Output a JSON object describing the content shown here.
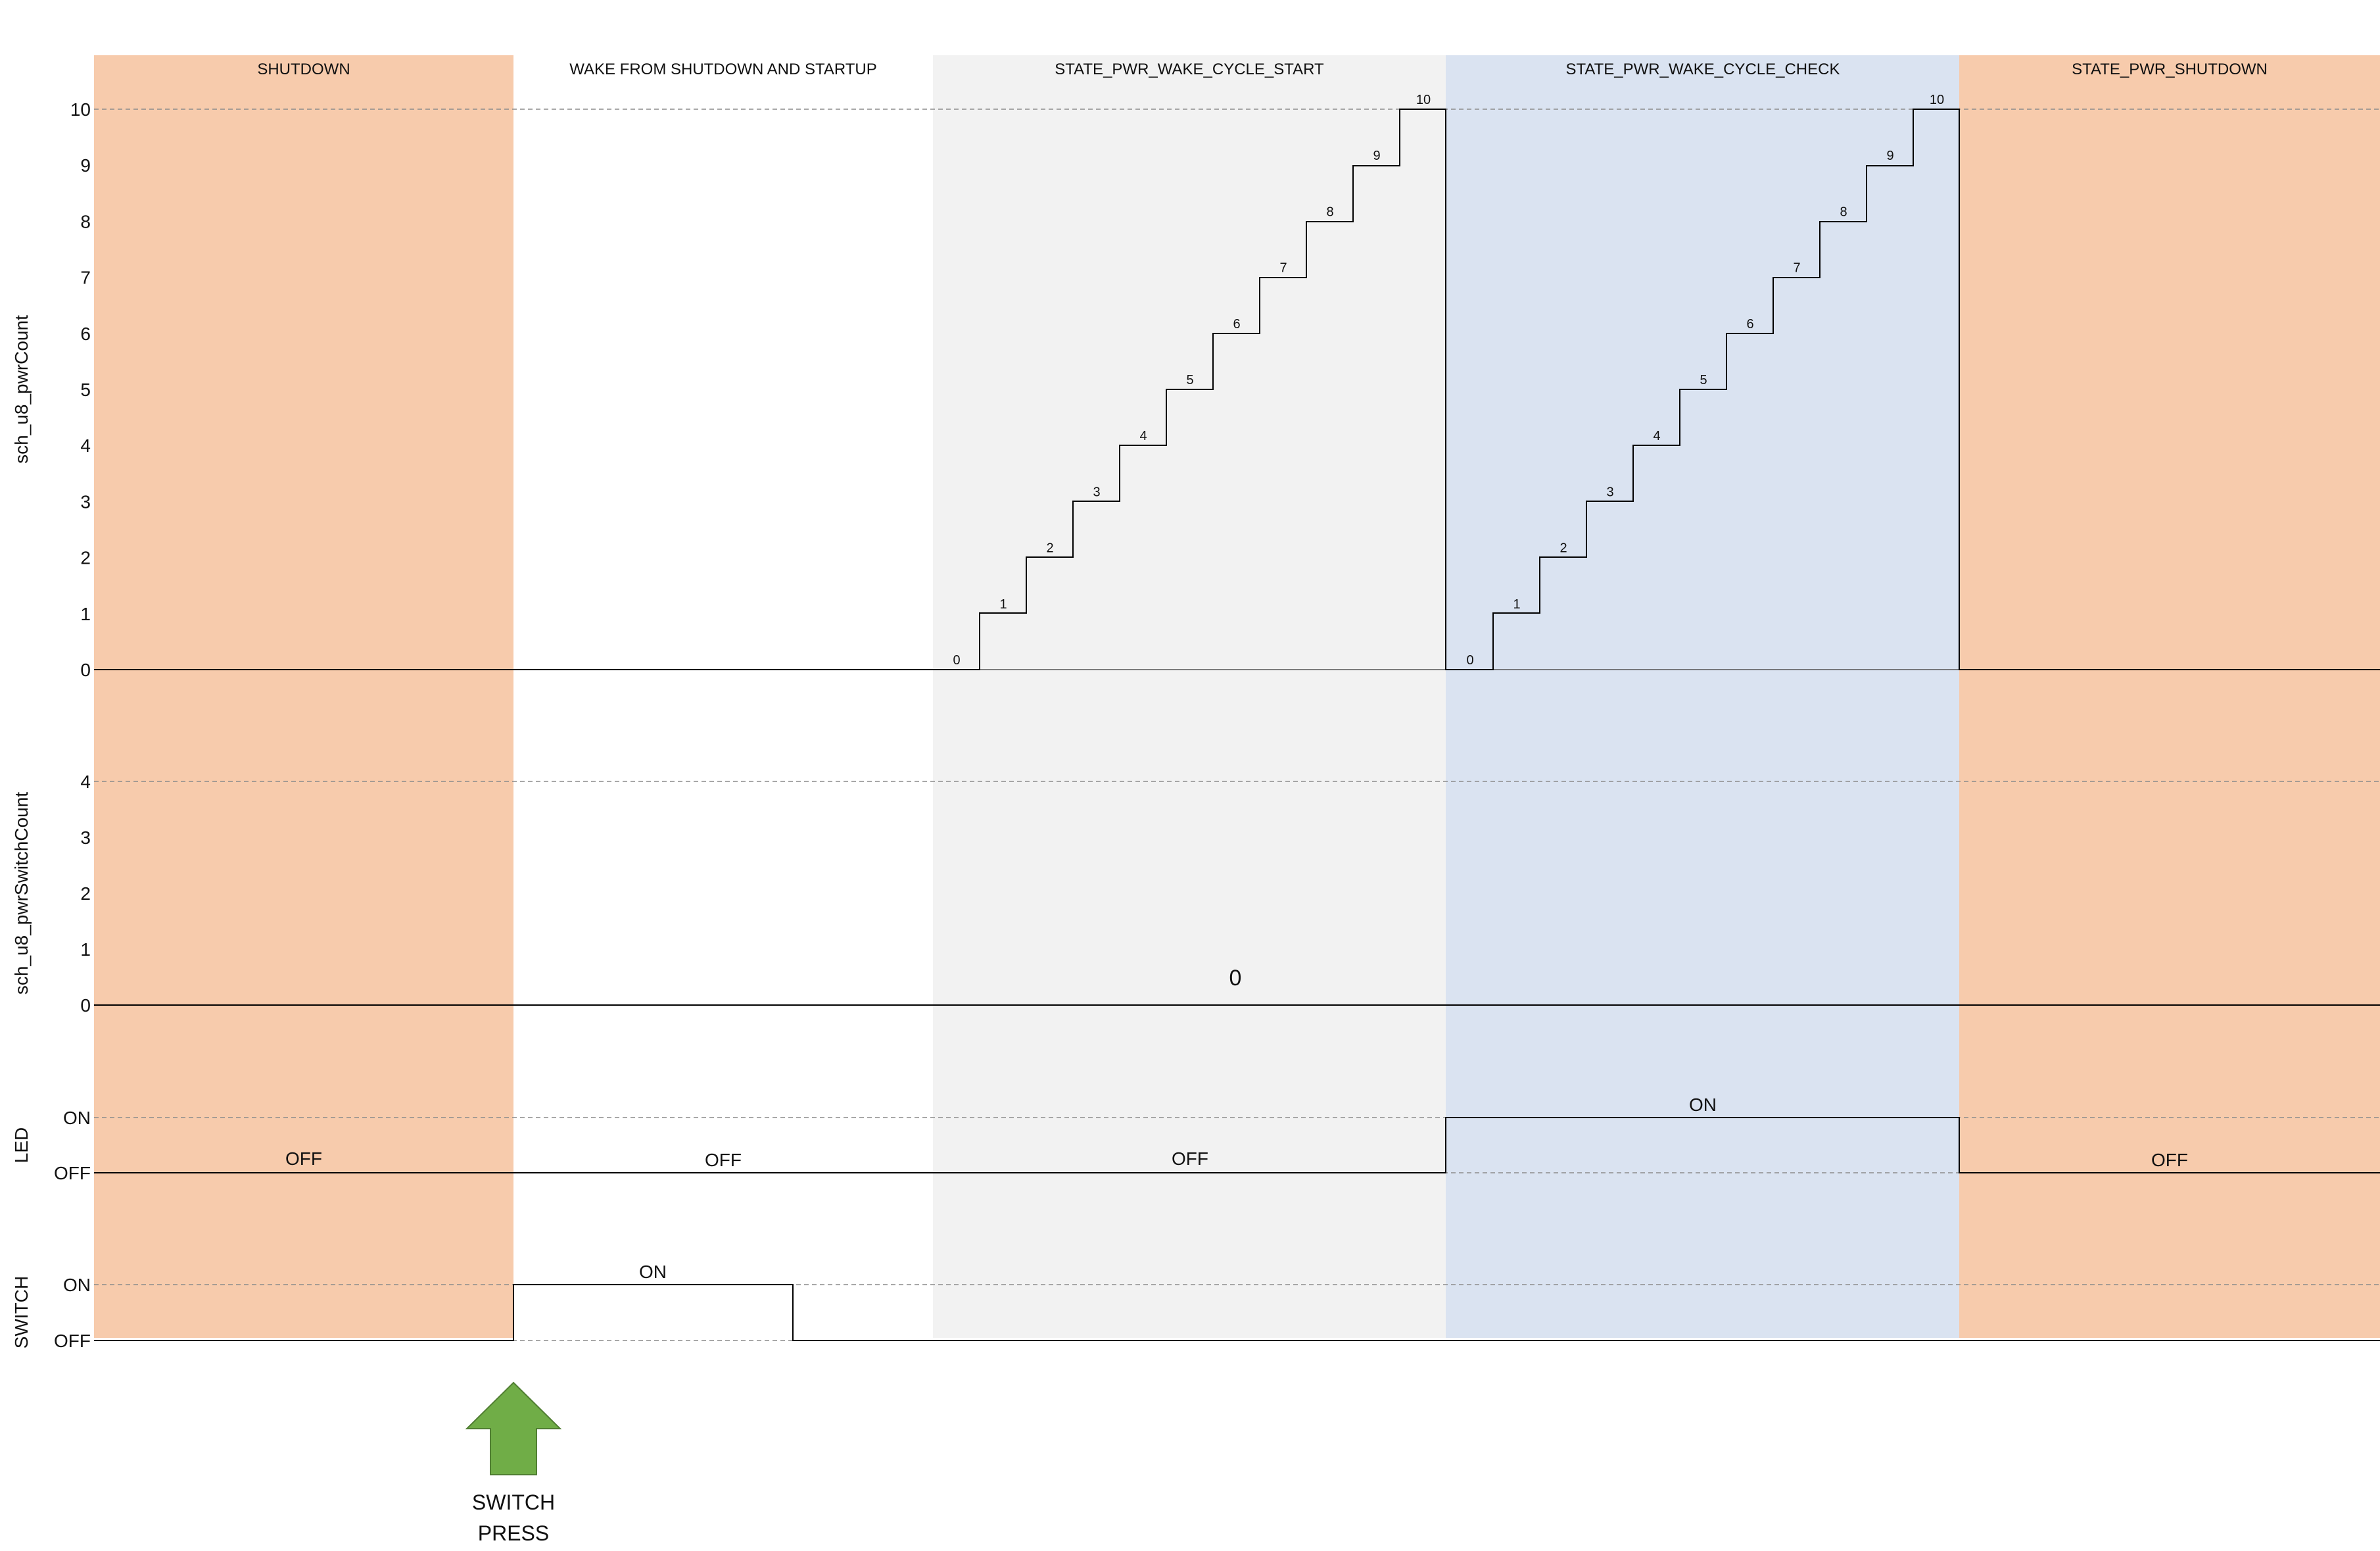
{
  "phases": [
    {
      "label": "SHUTDOWN",
      "color": "#f7cbac"
    },
    {
      "label": "WAKE FROM SHUTDOWN AND STARTUP",
      "color": "#ffffff"
    },
    {
      "label": "STATE_PWR_WAKE_CYCLE_START",
      "color": "#f2f2f2"
    },
    {
      "label": "STATE_PWR_WAKE_CYCLE_CHECK",
      "color": "#dae3f1"
    },
    {
      "label": "STATE_PWR_SHUTDOWN",
      "color": "#f7cbac"
    }
  ],
  "tracks": {
    "pwr_count": {
      "label": "sch_u8_pwrCount",
      "ticks": [
        "0",
        "1",
        "2",
        "3",
        "4",
        "5",
        "6",
        "7",
        "8",
        "9",
        "10"
      ],
      "step_labels": [
        "0",
        "1",
        "2",
        "3",
        "4",
        "5",
        "6",
        "7",
        "8",
        "9",
        "10"
      ],
      "values": "0 through wake phases; counts 0→10 in each of START and CHECK phases; 0 in STATE_PWR_SHUTDOWN"
    },
    "switch_count": {
      "label": "sch_u8_pwrSwitchCount",
      "ticks": [
        "0",
        "1",
        "2",
        "3",
        "4"
      ],
      "value_label": "0"
    },
    "led": {
      "label": "LED",
      "ticks": [
        "OFF",
        "ON"
      ],
      "segment_labels": [
        "OFF",
        "OFF",
        "OFF",
        "ON",
        "OFF"
      ]
    },
    "switch": {
      "label": "SWITCH",
      "ticks": [
        "OFF",
        "ON"
      ],
      "on_label": "ON"
    }
  },
  "annotation": {
    "line1": "SWITCH",
    "line2": "PRESS",
    "arrow_color": "#70ad47",
    "arrow_stroke": "#507e32"
  }
}
